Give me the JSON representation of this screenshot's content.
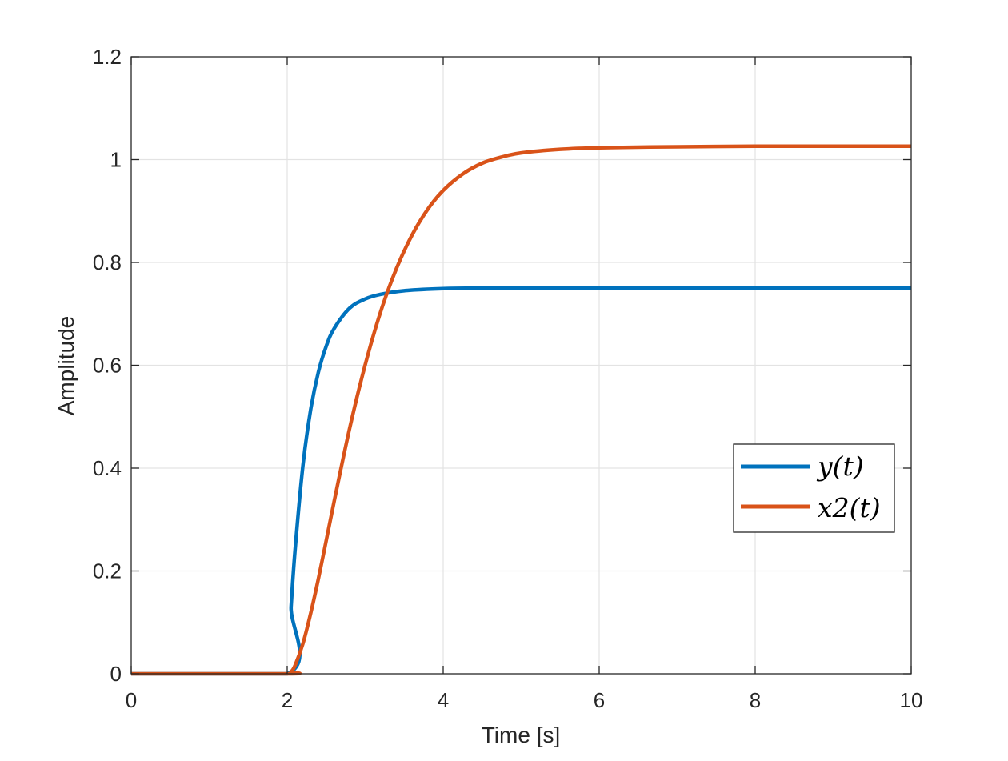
{
  "chart_data": {
    "type": "line",
    "title": "",
    "xlabel": "Time [s]",
    "ylabel": "Amplitude",
    "xlim": [
      0,
      10
    ],
    "ylim": [
      0,
      1.2
    ],
    "xticks": [
      0,
      2,
      4,
      6,
      8,
      10
    ],
    "xtick_labels": [
      "0",
      "2",
      "4",
      "6",
      "8",
      "10"
    ],
    "yticks": [
      0,
      0.2,
      0.4,
      0.6,
      0.8,
      1,
      1.2
    ],
    "ytick_labels": [
      "0",
      "0.2",
      "0.4",
      "0.6",
      "0.8",
      "1",
      "1.2"
    ],
    "grid": true,
    "legend_position": "right",
    "series": [
      {
        "name": "y(t)",
        "color": "#0072BD",
        "x": [
          0,
          2,
          2.05,
          2.1,
          2.2,
          2.3,
          2.4,
          2.5,
          2.6,
          2.8,
          3.0,
          3.2,
          3.5,
          4.0,
          4.5,
          5,
          6,
          7,
          8,
          9,
          10
        ],
        "y": [
          0,
          0,
          0.131,
          0.239,
          0.403,
          0.513,
          0.587,
          0.637,
          0.671,
          0.711,
          0.729,
          0.738,
          0.745,
          0.749,
          0.75,
          0.75,
          0.75,
          0.75,
          0.75,
          0.75,
          0.75
        ]
      },
      {
        "name": "x2(t)",
        "color": "#D95319",
        "x": [
          0,
          2,
          2.05,
          2.1,
          2.2,
          2.3,
          2.4,
          2.5,
          2.6,
          2.8,
          3.0,
          3.2,
          3.4,
          3.6,
          3.8,
          4.0,
          4.25,
          4.5,
          4.75,
          5.0,
          5.5,
          6,
          7,
          8,
          9,
          10
        ],
        "y": [
          0,
          0,
          0.004,
          0.016,
          0.058,
          0.117,
          0.185,
          0.259,
          0.334,
          0.477,
          0.601,
          0.705,
          0.788,
          0.853,
          0.903,
          0.94,
          0.972,
          0.993,
          1.005,
          1.013,
          1.02,
          1.023,
          1.025,
          1.026,
          1.026,
          1.026
        ]
      }
    ]
  }
}
